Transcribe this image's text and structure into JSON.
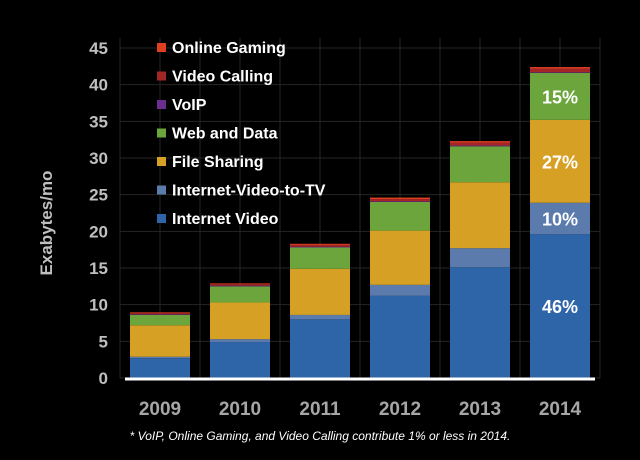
{
  "chart_data": {
    "type": "bar",
    "stacked": true,
    "ylabel": "Exabytes/mo",
    "ylim": [
      0,
      45
    ],
    "yticks": [
      0,
      5,
      10,
      15,
      20,
      25,
      30,
      35,
      40,
      45
    ],
    "grid": true,
    "legend_position": "top-left",
    "categories": [
      "2009",
      "2010",
      "2011",
      "2012",
      "2013",
      "2014"
    ],
    "series": [
      {
        "name": "Internet Video",
        "color": "#2e64a8",
        "values": [
          2.7,
          4.9,
          8.0,
          11.2,
          15.1,
          19.6
        ]
      },
      {
        "name": "Internet-Video-to-TV",
        "color": "#5a7bab",
        "values": [
          0.2,
          0.4,
          0.6,
          1.5,
          2.6,
          4.3
        ]
      },
      {
        "name": "File Sharing",
        "color": "#d6a024",
        "values": [
          4.3,
          5.0,
          6.3,
          7.4,
          9.0,
          11.3
        ]
      },
      {
        "name": "Web and Data",
        "color": "#6ba53b",
        "values": [
          1.4,
          2.2,
          2.9,
          3.9,
          4.9,
          6.4
        ]
      },
      {
        "name": "VoIP",
        "color": "#6b2d8f",
        "values": [
          0.1,
          0.1,
          0.1,
          0.1,
          0.1,
          0.1
        ]
      },
      {
        "name": "Video Calling",
        "color": "#a32525",
        "values": [
          0.15,
          0.2,
          0.25,
          0.3,
          0.4,
          0.5
        ]
      },
      {
        "name": "Online Gaming",
        "color": "#e04020",
        "values": [
          0.1,
          0.1,
          0.15,
          0.2,
          0.2,
          0.2
        ]
      }
    ],
    "legend_order": [
      "Online Gaming",
      "Video Calling",
      "VoIP",
      "Web and Data",
      "File Sharing",
      "Internet-Video-to-TV",
      "Internet Video"
    ],
    "annotations": [
      {
        "category": "2014",
        "series": "Internet Video",
        "text": "46%"
      },
      {
        "category": "2014",
        "series": "Internet-Video-to-TV",
        "text": "10%"
      },
      {
        "category": "2014",
        "series": "File Sharing",
        "text": "27%"
      },
      {
        "category": "2014",
        "series": "Web and Data",
        "text": "15%"
      }
    ]
  },
  "footnote": "* VoIP, Online Gaming, and Video Calling contribute 1% or less in 2014."
}
